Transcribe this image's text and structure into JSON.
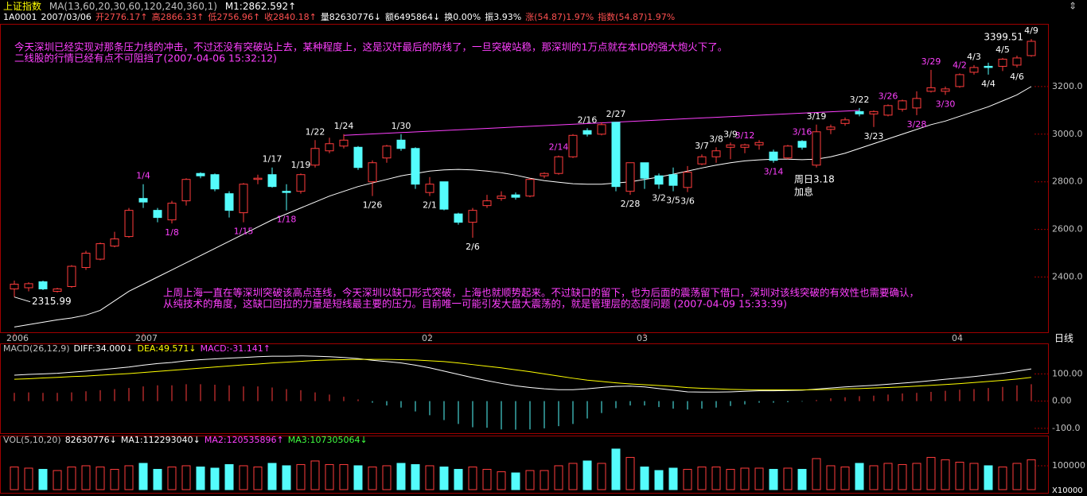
{
  "header": {
    "title": "上证指数",
    "ma_info": "MA(13,60,20,30,60,120,240,360,1)",
    "ma_value": "M1:2862.592↑",
    "quote": [
      "1A0001",
      "2007/03/06",
      "开2776.17↑",
      "高2866.33↑",
      "低2756.96↑",
      "收2840.18↑",
      "量82630776↓",
      "额6495864↓",
      "换0.00%",
      "振3.93%",
      "涨(54.87)1.97%",
      "指数(54.87)1.97%"
    ]
  },
  "chart_data": [
    {
      "type": "candlestick",
      "up_color": "#ff3c3c",
      "down_color": "#54fcfc",
      "ylim": [
        2168,
        3460
      ],
      "yticks": [
        {
          "value": 2400,
          "label": "2400.0"
        },
        {
          "value": 2600,
          "label": "2600.0"
        },
        {
          "value": 2800,
          "label": "2800.0"
        },
        {
          "value": 3000,
          "label": "3000.0"
        },
        {
          "value": 3200,
          "label": "3200.0"
        }
      ],
      "xticks": [
        {
          "value": 0,
          "label": "2006"
        },
        {
          "value": 9,
          "label": "2007"
        },
        {
          "value": 29,
          "label": "02"
        },
        {
          "value": 44,
          "label": "03"
        },
        {
          "value": 66,
          "label": "04"
        }
      ],
      "period": "日线",
      "open": [
        2350,
        2355,
        2380,
        2340,
        2360,
        2440,
        2475,
        2530,
        2570,
        2730,
        2680,
        2640,
        2720,
        2835,
        2830,
        2750,
        2670,
        2810,
        2830,
        2760,
        2760,
        2870,
        2930,
        2950,
        2945,
        2800,
        2900,
        2975,
        2940,
        2755,
        2800,
        2665,
        2630,
        2700,
        2730,
        2745,
        2740,
        2825,
        2835,
        2905,
        3015,
        3000,
        3050,
        2760,
        2880,
        2825,
        2830,
        2776.17,
        2875,
        2905,
        2945,
        2945,
        2955,
        2925,
        2900,
        2970,
        2870,
        3020,
        3045,
        3095,
        3085,
        3080,
        3105,
        3110,
        3180,
        3180,
        3200,
        3260,
        3285,
        3285,
        3290,
        3330
      ],
      "high": [
        2385,
        2378,
        2385,
        2355,
        2450,
        2510,
        2545,
        2590,
        2690,
        2790,
        2690,
        2720,
        2815,
        2840,
        2835,
        2760,
        2795,
        2830,
        2860,
        2790,
        2835,
        2975,
        2985,
        3000,
        2950,
        2890,
        2955,
        3000,
        2945,
        2820,
        2800,
        2670,
        2690,
        2745,
        2760,
        2755,
        2815,
        2840,
        2910,
        3000,
        3025,
        3050,
        3050,
        2880,
        2880,
        2835,
        2860,
        2866.33,
        2915,
        2945,
        2965,
        2960,
        2975,
        2935,
        2955,
        2975,
        3040,
        3040,
        3070,
        3110,
        3100,
        3125,
        3145,
        3180,
        3270,
        3200,
        3255,
        3290,
        3300,
        3320,
        3330,
        3399.51
      ],
      "low": [
        2315.99,
        2340,
        2345,
        2335,
        2355,
        2430,
        2470,
        2525,
        2565,
        2690,
        2630,
        2625,
        2700,
        2815,
        2760,
        2650,
        2630,
        2790,
        2775,
        2680,
        2750,
        2860,
        2920,
        2940,
        2850,
        2740,
        2880,
        2930,
        2770,
        2740,
        2680,
        2620,
        2565,
        2690,
        2720,
        2725,
        2735,
        2815,
        2830,
        2900,
        2990,
        2995,
        2760,
        2745,
        2770,
        2770,
        2760,
        2756.96,
        2870,
        2880,
        2895,
        2920,
        2935,
        2880,
        2895,
        2935,
        2860,
        3000,
        3035,
        3075,
        3030,
        3075,
        3095,
        3080,
        3175,
        3165,
        3195,
        3250,
        3250,
        3265,
        3280,
        3325
      ],
      "close": [
        2370,
        2372,
        2350,
        2350,
        2445,
        2500,
        2540,
        2560,
        2680,
        2715,
        2650,
        2710,
        2810,
        2825,
        2770,
        2680,
        2790,
        2815,
        2780,
        2755,
        2830,
        2940,
        2960,
        2975,
        2860,
        2880,
        2950,
        2940,
        2790,
        2790,
        2685,
        2630,
        2680,
        2720,
        2740,
        2735,
        2810,
        2835,
        2905,
        2995,
        3000,
        3040,
        2780,
        2880,
        2815,
        2790,
        2785,
        2840.18,
        2905,
        2930,
        2955,
        2955,
        2965,
        2890,
        2950,
        2945,
        3010,
        3030,
        3060,
        3085,
        3095,
        3120,
        3140,
        3150,
        3195,
        3190,
        3250,
        3280,
        3280,
        3315,
        3320,
        3390
      ],
      "ma": {
        "color": "#ffffff",
        "values": [
          2190,
          2200,
          2210,
          2220,
          2228,
          2240,
          2260,
          2300,
          2340,
          2370,
          2400,
          2430,
          2460,
          2490,
          2520,
          2550,
          2580,
          2610,
          2640,
          2665,
          2690,
          2715,
          2740,
          2760,
          2780,
          2795,
          2810,
          2825,
          2835,
          2845,
          2850,
          2852,
          2850,
          2845,
          2838,
          2828,
          2815,
          2805,
          2798,
          2792,
          2790,
          2790,
          2795,
          2800,
          2810,
          2820,
          2832,
          2845,
          2858,
          2870,
          2880,
          2888,
          2892,
          2895,
          2895,
          2893,
          2895,
          2905,
          2920,
          2940,
          2960,
          2980,
          3000,
          3020,
          3040,
          3055,
          3075,
          3095,
          3115,
          3140,
          3165,
          3200
        ]
      },
      "trendline": {
        "from_index": 23,
        "from_value": 2995,
        "to_index": 59,
        "to_value": 3100,
        "color": "#ff40ff"
      },
      "date_labels": [
        {
          "index": 9,
          "label": "1/4",
          "color": "#ff40ff",
          "place": "above"
        },
        {
          "index": 11,
          "label": "1/8",
          "color": "#ff40ff",
          "place": "below"
        },
        {
          "index": 16,
          "label": "1/15",
          "color": "#ff40ff",
          "place": "below"
        },
        {
          "index": 18,
          "label": "1/17",
          "color": "#ffffff",
          "place": "above"
        },
        {
          "index": 19,
          "label": "1/18",
          "color": "#ff40ff",
          "place": "below"
        },
        {
          "index": 20,
          "label": "1/19",
          "color": "#ffffff",
          "place": "above"
        },
        {
          "index": 21,
          "label": "1/22",
          "color": "#ffffff",
          "place": "above"
        },
        {
          "index": 23,
          "label": "1/24",
          "color": "#ffffff",
          "place": "above"
        },
        {
          "index": 25,
          "label": "1/26",
          "color": "#ffffff",
          "place": "below"
        },
        {
          "index": 27,
          "label": "1/30",
          "color": "#ffffff",
          "place": "above"
        },
        {
          "index": 29,
          "label": "2/1",
          "color": "#ffffff",
          "place": "below"
        },
        {
          "index": 32,
          "label": "2/6",
          "color": "#ffffff",
          "place": "below"
        },
        {
          "index": 38,
          "label": "2/14",
          "color": "#ff40ff",
          "place": "above"
        },
        {
          "index": 40,
          "label": "2/16",
          "color": "#ffffff",
          "place": "above"
        },
        {
          "index": 42,
          "label": "2/27",
          "color": "#ffffff",
          "place": "above"
        },
        {
          "index": 43,
          "label": "2/28",
          "color": "#ffffff",
          "place": "below"
        },
        {
          "index": 45,
          "label": "3/2",
          "color": "#ffffff",
          "place": "below"
        },
        {
          "index": 46,
          "label": "3/5",
          "color": "#ffffff",
          "place": "below"
        },
        {
          "index": 47,
          "label": "3/6",
          "color": "#ffffff",
          "place": "below"
        },
        {
          "index": 48,
          "label": "3/7",
          "color": "#ffffff",
          "place": "above"
        },
        {
          "index": 49,
          "label": "3/8",
          "color": "#ffffff",
          "place": "above"
        },
        {
          "index": 50,
          "label": "3/9",
          "color": "#ffffff",
          "place": "above"
        },
        {
          "index": 51,
          "label": "3/12",
          "color": "#ff40ff",
          "place": "above"
        },
        {
          "index": 53,
          "label": "3/14",
          "color": "#ff40ff",
          "place": "below"
        },
        {
          "index": 55,
          "label": "3/16",
          "color": "#ff40ff",
          "place": "above"
        },
        {
          "index": 56,
          "label": "3/19",
          "color": "#ffffff",
          "place": "above"
        },
        {
          "index": 59,
          "label": "3/22",
          "color": "#ffffff",
          "place": "above"
        },
        {
          "index": 60,
          "label": "3/23",
          "color": "#ffffff",
          "place": "below"
        },
        {
          "index": 61,
          "label": "3/26",
          "color": "#ff40ff",
          "place": "above"
        },
        {
          "index": 63,
          "label": "3/28",
          "color": "#ff40ff",
          "place": "below"
        },
        {
          "index": 64,
          "label": "3/29",
          "color": "#ff40ff",
          "place": "above"
        },
        {
          "index": 65,
          "label": "3/30",
          "color": "#ff40ff",
          "place": "below"
        },
        {
          "index": 66,
          "label": "4/2",
          "color": "#ff40ff",
          "place": "above"
        },
        {
          "index": 67,
          "label": "4/3",
          "color": "#ffffff",
          "place": "above"
        },
        {
          "index": 68,
          "label": "4/4",
          "color": "#ffffff",
          "place": "below"
        },
        {
          "index": 69,
          "label": "4/5",
          "color": "#ffffff",
          "place": "above"
        },
        {
          "index": 70,
          "label": "4/6",
          "color": "#ffffff",
          "place": "below"
        },
        {
          "index": 71,
          "label": "4/9",
          "color": "#ffffff",
          "place": "above"
        }
      ],
      "notes": [
        "今天深圳已经实现对那条压力线的冲击，不过还没有突破站上去，某种程度上，这是汉奸最后的防线了，一旦突破站稳，那深圳的1万点就在本ID的强大炮火下了。",
        "二线股的行情已经有点不可阻挡了(2007-04-06 15:32:12)",
        "上周上海一直在等深圳突破该高点连线，今天深圳以缺口形式突破，上海也就顺势起来。不过缺口的留下，也为后面的震荡留下借口，深圳对该线突破的有效性也需要确认，",
        "从纯技术的角度，这缺口回拉的力量是短线最主要的压力。目前唯一可能引发大盘大震荡的，就是管理层的态度问题 (2007-04-09 15:33:39)",
        "周日3.18",
        "加息"
      ]
    },
    {
      "type": "macd",
      "header_parts": [
        "MACD(26,12,9)",
        "DIFF:34.000↓",
        "DEA:49.571↓",
        "MACD:-31.141↑"
      ],
      "up_color": "#ff3c3c",
      "down_color": "#54fcfc",
      "ylim": [
        -118,
        209
      ],
      "yticks": [
        {
          "value": 100,
          "label": "100.00"
        },
        {
          "value": 0,
          "label": "0.00"
        },
        {
          "value": -100,
          "label": "-100.0"
        }
      ],
      "diff": {
        "color": "#ffffff",
        "values": [
          95,
          98,
          100,
          102,
          106,
          110,
          115,
          120,
          125,
          132,
          138,
          142,
          148,
          152,
          155,
          158,
          160,
          163,
          165,
          165,
          166,
          165,
          163,
          160,
          156,
          150,
          145,
          140,
          132,
          122,
          110,
          98,
          86,
          75,
          65,
          56,
          50,
          45,
          42,
          42,
          45,
          50,
          54,
          55,
          52,
          46,
          40,
          34,
          33,
          33,
          34,
          36,
          38,
          38,
          39,
          40,
          44,
          48,
          52,
          55,
          58,
          62,
          66,
          70,
          75,
          80,
          85,
          90,
          96,
          102,
          110,
          118
        ]
      },
      "dea": {
        "color": "#ffff00",
        "values": [
          80,
          82,
          85,
          87,
          90,
          92,
          95,
          98,
          101,
          105,
          109,
          113,
          117,
          121,
          125,
          129,
          133,
          136,
          140,
          143,
          146,
          149,
          151,
          152,
          153,
          153,
          153,
          152,
          151,
          148,
          145,
          140,
          134,
          128,
          122,
          115,
          108,
          100,
          92,
          84,
          77,
          72,
          67,
          63,
          60,
          57,
          54,
          49.571,
          47,
          45,
          43,
          42,
          41,
          41,
          41,
          41,
          42,
          43,
          45,
          46,
          48,
          50,
          52,
          55,
          58,
          61,
          64,
          68,
          72,
          76,
          81,
          87
        ]
      },
      "values": [
        30,
        32,
        30,
        30,
        32,
        36,
        40,
        44,
        48,
        54,
        58,
        58,
        62,
        62,
        60,
        58,
        54,
        54,
        50,
        44,
        40,
        32,
        24,
        16,
        6,
        -6,
        -16,
        -24,
        -38,
        -52,
        -70,
        -84,
        -96,
        -98,
        -104,
        -105,
        -104,
        -100,
        -92,
        -84,
        -64,
        -44,
        -26,
        -16,
        -16,
        -22,
        -28,
        -31.141,
        -28,
        -24,
        -18,
        -12,
        -6,
        -6,
        -4,
        -2,
        4,
        10,
        14,
        18,
        20,
        24,
        28,
        30,
        34,
        38,
        42,
        44,
        48,
        52,
        58,
        62
      ]
    },
    {
      "type": "volume",
      "header_parts": [
        "VOL(5,10,20)",
        "82630776↓",
        "MA1:112293040↓",
        "MA2:120535896↑",
        "MA3:107305064↓"
      ],
      "ylim": [
        0,
        213000
      ],
      "yticks": [
        100000
      ],
      "unit_label": "X10000",
      "values": [
        95000,
        90000,
        85000,
        80000,
        95000,
        100000,
        95000,
        85000,
        100000,
        110000,
        85000,
        95000,
        100000,
        95000,
        90000,
        105000,
        100000,
        95000,
        110000,
        100000,
        105000,
        120000,
        105000,
        105000,
        100000,
        95000,
        100000,
        110000,
        105000,
        100000,
        95000,
        85000,
        95000,
        85000,
        75000,
        70000,
        80000,
        80000,
        100000,
        110000,
        120000,
        110000,
        170000,
        135000,
        95000,
        80000,
        90000,
        85000,
        95000,
        95000,
        85000,
        90000,
        90000,
        85000,
        90000,
        85000,
        130000,
        100000,
        95000,
        110000,
        100000,
        110000,
        105000,
        110000,
        135000,
        125000,
        115000,
        110000,
        100000,
        95000,
        110000,
        125000
      ]
    }
  ]
}
